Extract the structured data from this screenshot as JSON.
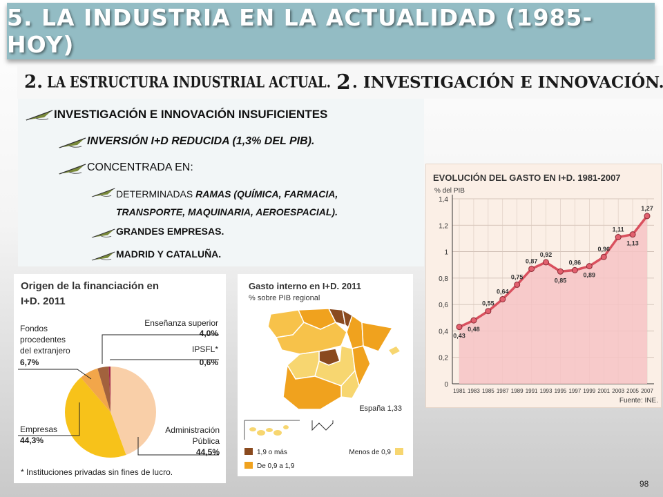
{
  "slide": {
    "title": "5. LA INDUSTRIA EN LA ACTUALIDAD (1985-HOY)",
    "subtitle": {
      "part1": "2.",
      "part2": "LA ESTRUCTURA INDUSTRIAL ACTUAL.",
      "part3": "2",
      "part4": ". INVESTIGACIÓN E INNOVACIÓN."
    },
    "bullets": {
      "b1": "INVESTIGACIÓN E INNOVACIÓN INSUFICIENTES",
      "b2": "INVERSIÓN I+D REDUCIDA (1,3% DEL PIB).",
      "b3": "CONCENTRADA EN:",
      "b4_prefix": "DETERMINADAS ",
      "b4_rest": "RAMAS (QUÍMICA, FARMACIA, TRANSPORTE, MAQUINARIA, AEROESPACIAL).",
      "b5": "GRANDES EMPRESAS.",
      "b6": "MADRID Y CATALUÑA."
    },
    "bullet_icon": "quill-pen-icon",
    "page_number": "98"
  },
  "chart_data": [
    {
      "type": "area",
      "title": "EVOLUCIÓN DEL GASTO EN I+D. 1981-2007",
      "ylabel": "% del PIB",
      "source": "Fuente: INE.",
      "x": [
        "1981",
        "1983",
        "1985",
        "1987",
        "1989",
        "1991",
        "1993",
        "1995",
        "1997",
        "1999",
        "2001",
        "2003",
        "2005",
        "2007"
      ],
      "values": [
        0.43,
        0.48,
        0.55,
        0.64,
        0.75,
        0.87,
        0.92,
        0.85,
        0.86,
        0.89,
        0.96,
        1.11,
        1.13,
        1.27
      ],
      "value_labels": [
        "0,43",
        "0,48",
        "0,55",
        "0,64",
        "0,75",
        "0,87",
        "0,92",
        "0,85",
        "0,86",
        "0,89",
        "0,96",
        "1,11",
        "1,13",
        "1,27"
      ],
      "yticks": [
        "0",
        "0,2",
        "0,4",
        "0,6",
        "0,8",
        "1",
        "1,2",
        "1,4"
      ],
      "ylim": [
        0,
        1.4
      ],
      "grid": true,
      "colors": {
        "line": "#d9505e",
        "fill": "#f6c3c4",
        "marker": "#e2606e"
      }
    },
    {
      "type": "pie",
      "title_line1": "Origen de la financiación en",
      "title_line2": "I+D. 2011",
      "slices": [
        {
          "label": "Administración Pública",
          "label_l1": "Administración",
          "label_l2": "Pública",
          "value": 44.5,
          "value_label": "44,5%",
          "color": "#f9cfa8"
        },
        {
          "label": "Empresas",
          "value": 44.3,
          "value_label": "44,3%",
          "color": "#f7c21a"
        },
        {
          "label": "Fondos procedentes del extranjero",
          "label_l1": "Fondos",
          "label_l2": "procedentes",
          "label_l3": "del extranjero",
          "value": 6.7,
          "value_label": "6,7%",
          "color": "#f2a64a"
        },
        {
          "label": "Enseñanza superior",
          "value": 4.0,
          "value_label": "4,0%",
          "color": "#a2623d"
        },
        {
          "label": "IPSFL*",
          "value": 0.6,
          "value_label": "0,6%",
          "color": "#a1264a"
        }
      ],
      "footnote": "* Instituciones privadas sin fines de lucro."
    }
  ],
  "map": {
    "title": "Gasto interno en I+D. 2011",
    "subtitle": "% sobre PIB regional",
    "national_label": "España 1,33",
    "legend": [
      {
        "label": "1,9 o más",
        "color": "#8a4a1f"
      },
      {
        "label": "De 0,9 a 1,9",
        "color": "#f0a21e"
      },
      {
        "label": "Menos de 0,9",
        "color": "#f7d670"
      }
    ]
  }
}
